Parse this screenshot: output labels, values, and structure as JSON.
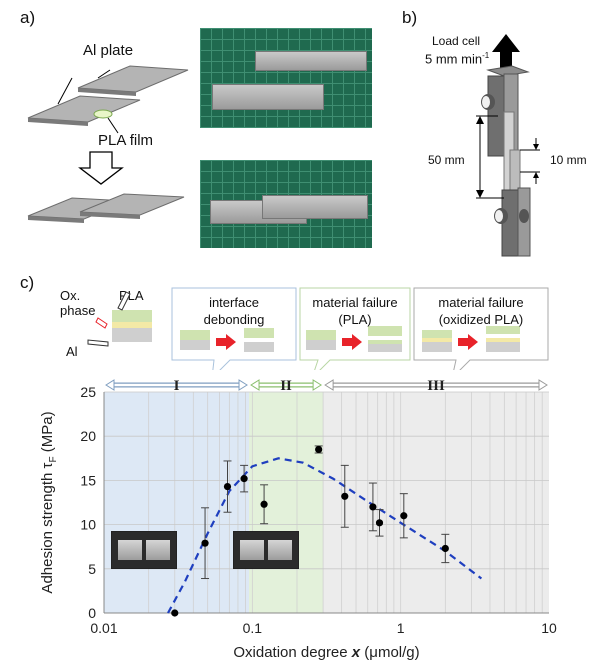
{
  "panel_a": {
    "label": "a)",
    "al_plate": "Al plate",
    "pla_film": "PLA film"
  },
  "panel_b": {
    "label": "b)",
    "load_cell": "Load cell",
    "speed": "5  mm min",
    "speed_sup": "-1",
    "dim_50": "50 mm",
    "dim_10": "10 mm"
  },
  "panel_c": {
    "label": "c)",
    "ox_phase": "Ox.\nphase",
    "pla": "PLA",
    "al": "Al",
    "callouts": [
      {
        "line1": "interface",
        "line2": "debonding"
      },
      {
        "line1": "material failure",
        "line2": "(PLA)"
      },
      {
        "line1": "material failure",
        "line2": "(oxidized PLA)"
      }
    ]
  },
  "colors": {
    "region_I": "#dde8f5",
    "region_II": "#e3f1da",
    "region_III": "#ececec",
    "fit_line": "#1f3fbf",
    "arrow_red": "#e8232a",
    "pla_green": "#cfe3b0",
    "ox_yellow": "#f3e9a6",
    "al_gray": "#cfcfcf"
  },
  "chart_data": {
    "type": "scatter",
    "xlabel": "Oxidation degree",
    "xlabel_var": "x",
    "xlabel_unit": "(μmol/g)",
    "ylabel": "Adhesion strength τ",
    "ylabel_sub": "F",
    "ylabel_unit": "(MPa)",
    "xscale": "log",
    "xlim": [
      0.01,
      10
    ],
    "ylim": [
      0,
      25
    ],
    "x_ticks": [
      "0.01",
      "0.1",
      "1",
      "10"
    ],
    "y_ticks": [
      "0",
      "5",
      "10",
      "15",
      "20",
      "25"
    ],
    "grid": true,
    "regions": [
      {
        "name": "I",
        "x": [
          0.01,
          0.095
        ]
      },
      {
        "name": "II",
        "x": [
          0.095,
          0.3
        ]
      },
      {
        "name": "III",
        "x": [
          0.3,
          10
        ]
      }
    ],
    "points": [
      {
        "x": 0.03,
        "y": 0.0,
        "err": 0
      },
      {
        "x": 0.048,
        "y": 7.9,
        "err": 4.0
      },
      {
        "x": 0.068,
        "y": 14.3,
        "err": 2.9
      },
      {
        "x": 0.088,
        "y": 15.2,
        "err": 1.5
      },
      {
        "x": 0.12,
        "y": 12.3,
        "err": 2.2
      },
      {
        "x": 0.28,
        "y": 18.5,
        "err": 0.4
      },
      {
        "x": 0.42,
        "y": 13.2,
        "err": 3.5
      },
      {
        "x": 0.65,
        "y": 12.0,
        "err": 2.7
      },
      {
        "x": 0.72,
        "y": 10.2,
        "err": 1.5
      },
      {
        "x": 1.05,
        "y": 11.0,
        "err": 2.5
      },
      {
        "x": 2.0,
        "y": 7.3,
        "err": 1.6
      }
    ],
    "fit": [
      {
        "x": 0.027,
        "y": 0
      },
      {
        "x": 0.035,
        "y": 3.5
      },
      {
        "x": 0.05,
        "y": 9.0
      },
      {
        "x": 0.07,
        "y": 13.8
      },
      {
        "x": 0.1,
        "y": 16.6
      },
      {
        "x": 0.15,
        "y": 17.5
      },
      {
        "x": 0.22,
        "y": 17.0
      },
      {
        "x": 0.35,
        "y": 15.2
      },
      {
        "x": 0.6,
        "y": 12.6
      },
      {
        "x": 1.0,
        "y": 10.2
      },
      {
        "x": 2.0,
        "y": 7.0
      },
      {
        "x": 3.5,
        "y": 3.9
      }
    ]
  }
}
